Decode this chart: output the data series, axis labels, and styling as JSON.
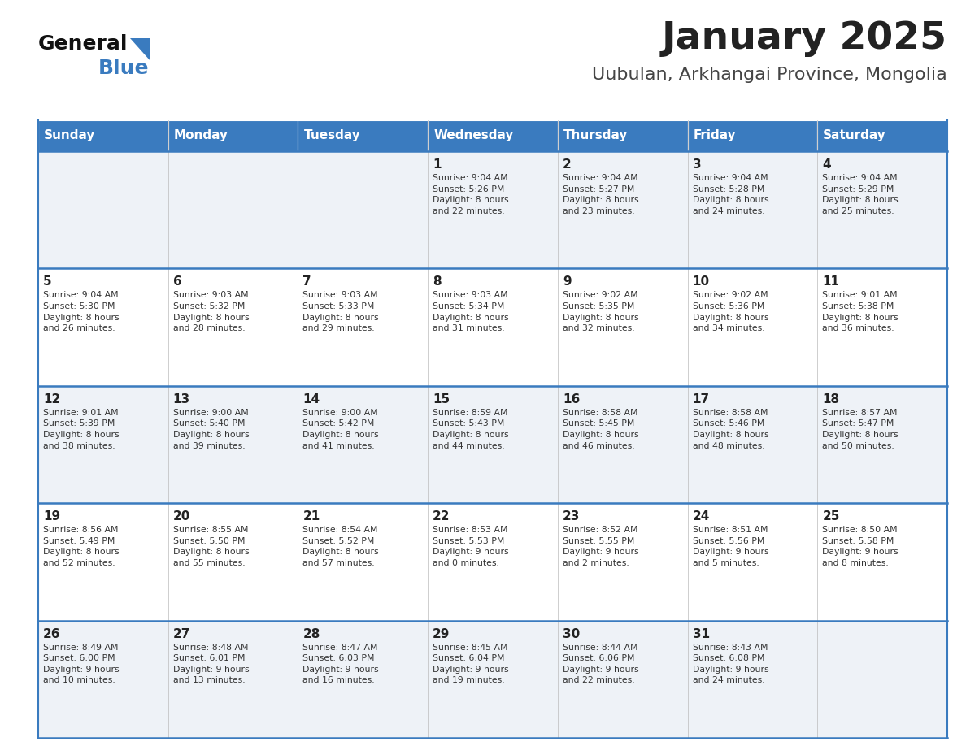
{
  "title": "January 2025",
  "subtitle": "Uubulan, Arkhangai Province, Mongolia",
  "header_color": "#3a7bbf",
  "header_text_color": "#ffffff",
  "days_of_week": [
    "Sunday",
    "Monday",
    "Tuesday",
    "Wednesday",
    "Thursday",
    "Friday",
    "Saturday"
  ],
  "bg_color": "#ffffff",
  "cell_bg_even": "#eef2f7",
  "cell_bg_odd": "#ffffff",
  "border_color": "#3a7bbf",
  "text_color": "#333333",
  "logo_general_color": "#111111",
  "logo_blue_color": "#3a7bbf",
  "logo_triangle_color": "#3a7bbf",
  "title_color": "#222222",
  "subtitle_color": "#444444",
  "title_fontsize": 34,
  "subtitle_fontsize": 16,
  "header_fontsize": 11,
  "day_num_fontsize": 11,
  "info_fontsize": 7.8,
  "calendar_data": [
    [
      {
        "day": "",
        "info": ""
      },
      {
        "day": "",
        "info": ""
      },
      {
        "day": "",
        "info": ""
      },
      {
        "day": "1",
        "info": "Sunrise: 9:04 AM\nSunset: 5:26 PM\nDaylight: 8 hours\nand 22 minutes."
      },
      {
        "day": "2",
        "info": "Sunrise: 9:04 AM\nSunset: 5:27 PM\nDaylight: 8 hours\nand 23 minutes."
      },
      {
        "day": "3",
        "info": "Sunrise: 9:04 AM\nSunset: 5:28 PM\nDaylight: 8 hours\nand 24 minutes."
      },
      {
        "day": "4",
        "info": "Sunrise: 9:04 AM\nSunset: 5:29 PM\nDaylight: 8 hours\nand 25 minutes."
      }
    ],
    [
      {
        "day": "5",
        "info": "Sunrise: 9:04 AM\nSunset: 5:30 PM\nDaylight: 8 hours\nand 26 minutes."
      },
      {
        "day": "6",
        "info": "Sunrise: 9:03 AM\nSunset: 5:32 PM\nDaylight: 8 hours\nand 28 minutes."
      },
      {
        "day": "7",
        "info": "Sunrise: 9:03 AM\nSunset: 5:33 PM\nDaylight: 8 hours\nand 29 minutes."
      },
      {
        "day": "8",
        "info": "Sunrise: 9:03 AM\nSunset: 5:34 PM\nDaylight: 8 hours\nand 31 minutes."
      },
      {
        "day": "9",
        "info": "Sunrise: 9:02 AM\nSunset: 5:35 PM\nDaylight: 8 hours\nand 32 minutes."
      },
      {
        "day": "10",
        "info": "Sunrise: 9:02 AM\nSunset: 5:36 PM\nDaylight: 8 hours\nand 34 minutes."
      },
      {
        "day": "11",
        "info": "Sunrise: 9:01 AM\nSunset: 5:38 PM\nDaylight: 8 hours\nand 36 minutes."
      }
    ],
    [
      {
        "day": "12",
        "info": "Sunrise: 9:01 AM\nSunset: 5:39 PM\nDaylight: 8 hours\nand 38 minutes."
      },
      {
        "day": "13",
        "info": "Sunrise: 9:00 AM\nSunset: 5:40 PM\nDaylight: 8 hours\nand 39 minutes."
      },
      {
        "day": "14",
        "info": "Sunrise: 9:00 AM\nSunset: 5:42 PM\nDaylight: 8 hours\nand 41 minutes."
      },
      {
        "day": "15",
        "info": "Sunrise: 8:59 AM\nSunset: 5:43 PM\nDaylight: 8 hours\nand 44 minutes."
      },
      {
        "day": "16",
        "info": "Sunrise: 8:58 AM\nSunset: 5:45 PM\nDaylight: 8 hours\nand 46 minutes."
      },
      {
        "day": "17",
        "info": "Sunrise: 8:58 AM\nSunset: 5:46 PM\nDaylight: 8 hours\nand 48 minutes."
      },
      {
        "day": "18",
        "info": "Sunrise: 8:57 AM\nSunset: 5:47 PM\nDaylight: 8 hours\nand 50 minutes."
      }
    ],
    [
      {
        "day": "19",
        "info": "Sunrise: 8:56 AM\nSunset: 5:49 PM\nDaylight: 8 hours\nand 52 minutes."
      },
      {
        "day": "20",
        "info": "Sunrise: 8:55 AM\nSunset: 5:50 PM\nDaylight: 8 hours\nand 55 minutes."
      },
      {
        "day": "21",
        "info": "Sunrise: 8:54 AM\nSunset: 5:52 PM\nDaylight: 8 hours\nand 57 minutes."
      },
      {
        "day": "22",
        "info": "Sunrise: 8:53 AM\nSunset: 5:53 PM\nDaylight: 9 hours\nand 0 minutes."
      },
      {
        "day": "23",
        "info": "Sunrise: 8:52 AM\nSunset: 5:55 PM\nDaylight: 9 hours\nand 2 minutes."
      },
      {
        "day": "24",
        "info": "Sunrise: 8:51 AM\nSunset: 5:56 PM\nDaylight: 9 hours\nand 5 minutes."
      },
      {
        "day": "25",
        "info": "Sunrise: 8:50 AM\nSunset: 5:58 PM\nDaylight: 9 hours\nand 8 minutes."
      }
    ],
    [
      {
        "day": "26",
        "info": "Sunrise: 8:49 AM\nSunset: 6:00 PM\nDaylight: 9 hours\nand 10 minutes."
      },
      {
        "day": "27",
        "info": "Sunrise: 8:48 AM\nSunset: 6:01 PM\nDaylight: 9 hours\nand 13 minutes."
      },
      {
        "day": "28",
        "info": "Sunrise: 8:47 AM\nSunset: 6:03 PM\nDaylight: 9 hours\nand 16 minutes."
      },
      {
        "day": "29",
        "info": "Sunrise: 8:45 AM\nSunset: 6:04 PM\nDaylight: 9 hours\nand 19 minutes."
      },
      {
        "day": "30",
        "info": "Sunrise: 8:44 AM\nSunset: 6:06 PM\nDaylight: 9 hours\nand 22 minutes."
      },
      {
        "day": "31",
        "info": "Sunrise: 8:43 AM\nSunset: 6:08 PM\nDaylight: 9 hours\nand 24 minutes."
      },
      {
        "day": "",
        "info": ""
      }
    ]
  ]
}
